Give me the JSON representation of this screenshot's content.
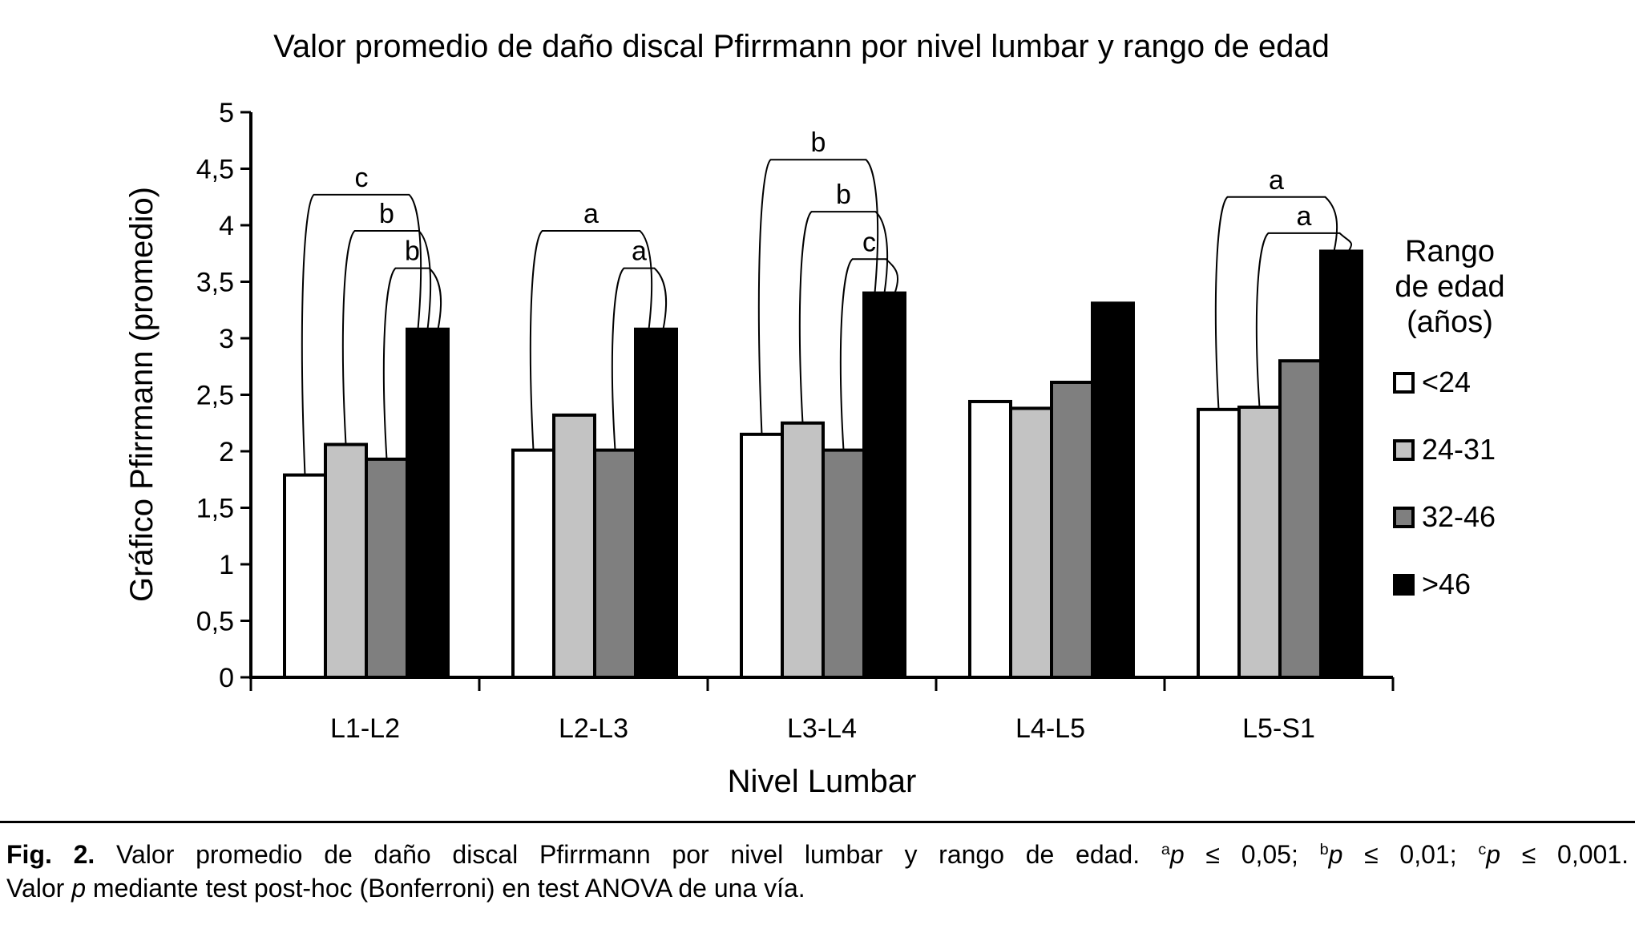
{
  "chart_data": {
    "type": "bar",
    "title": "Valor promedio de daño discal Pfirrmann por nivel lumbar y rango de edad",
    "xlabel": "Nivel Lumbar",
    "ylabel": "Gráfico Pfirrmann (promedio)",
    "ylim": [
      0,
      5
    ],
    "ytick_step": 0.5,
    "decimal_separator": ",",
    "grid": false,
    "legend_position": "right",
    "legend_title": "Rango de edad (años)",
    "categories": [
      "L1-L2",
      "L2-L3",
      "L3-L4",
      "L4-L5",
      "L5-S1"
    ],
    "series": [
      {
        "name": "<24",
        "color": "#ffffff",
        "border": "#000000",
        "values": [
          1.79,
          2.01,
          2.15,
          2.44,
          2.37
        ]
      },
      {
        "name": "24-31",
        "color": "#c3c3c3",
        "border": "#000000",
        "values": [
          2.06,
          2.32,
          2.25,
          2.38,
          2.39
        ]
      },
      {
        "name": "32-46",
        "color": "#7f7f7f",
        "border": "#000000",
        "values": [
          1.93,
          2.01,
          2.01,
          2.61,
          2.8
        ]
      },
      {
        "name": ">46",
        "color": "#000000",
        "border": "#000000",
        "values": [
          3.08,
          3.08,
          3.4,
          3.31,
          3.77
        ]
      }
    ],
    "significance_brackets": [
      {
        "category": "L1-L2",
        "from_series": "<24",
        "to_series": ">46",
        "label": "c",
        "height": 4.27
      },
      {
        "category": "L1-L2",
        "from_series": "24-31",
        "to_series": ">46",
        "label": "b",
        "height": 3.95
      },
      {
        "category": "L1-L2",
        "from_series": "32-46",
        "to_series": ">46",
        "label": "b",
        "height": 3.62
      },
      {
        "category": "L2-L3",
        "from_series": "<24",
        "to_series": ">46",
        "label": "a",
        "height": 3.95
      },
      {
        "category": "L2-L3",
        "from_series": "32-46",
        "to_series": ">46",
        "label": "a",
        "height": 3.62
      },
      {
        "category": "L3-L4",
        "from_series": "<24",
        "to_series": ">46",
        "label": "b",
        "height": 4.58
      },
      {
        "category": "L3-L4",
        "from_series": "24-31",
        "to_series": ">46",
        "label": "b",
        "height": 4.12
      },
      {
        "category": "L3-L4",
        "from_series": "32-46",
        "to_series": ">46",
        "label": "c",
        "height": 3.7
      },
      {
        "category": "L5-S1",
        "from_series": "<24",
        "to_series": ">46",
        "label": "a",
        "height": 4.25
      },
      {
        "category": "L5-S1",
        "from_series": "24-31",
        "to_series": ">46",
        "label": "a",
        "height": 3.93
      }
    ],
    "significance_note": "a: p ≤ 0,05; b: p ≤ 0,01; c: p ≤ 0,001"
  },
  "caption": {
    "line1_segments": [
      {
        "text": "Fig. 2.",
        "style": "bold"
      },
      {
        "text": " Valor promedio de daño discal Pfirrmann por nivel lumbar y rango de edad. ",
        "style": "normal"
      },
      {
        "text": "a",
        "style": "sup"
      },
      {
        "text": "p",
        "style": "italic"
      },
      {
        "text": " ≤ 0,05; ",
        "style": "normal"
      },
      {
        "text": "b",
        "style": "sup"
      },
      {
        "text": "p",
        "style": "italic"
      },
      {
        "text": " ≤ 0,01; ",
        "style": "normal"
      },
      {
        "text": "c",
        "style": "sup"
      },
      {
        "text": "p",
        "style": "italic"
      },
      {
        "text": " ≤ 0,001.",
        "style": "normal"
      }
    ],
    "line2_segments": [
      {
        "text": "Valor ",
        "style": "normal"
      },
      {
        "text": "p",
        "style": "italic"
      },
      {
        "text": " mediante test post-hoc (Bonferroni) en test ANOVA de una vía.",
        "style": "normal"
      }
    ]
  }
}
